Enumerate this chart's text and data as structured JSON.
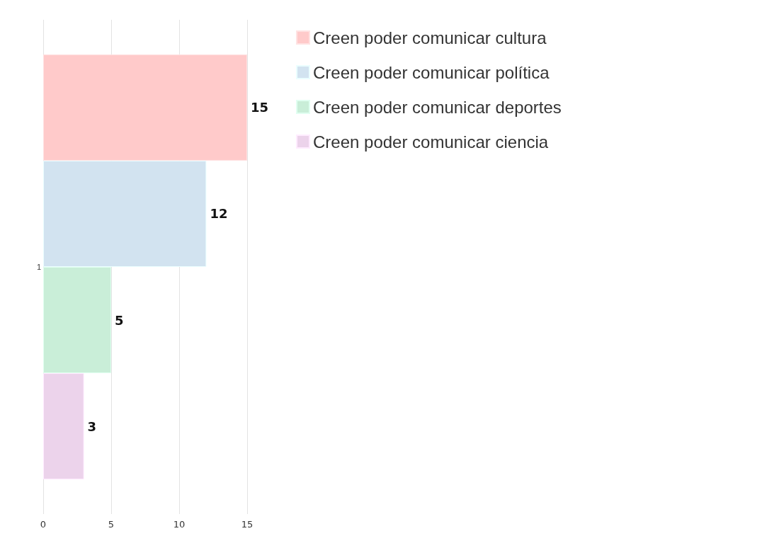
{
  "chart_data": {
    "type": "bar",
    "orientation": "horizontal",
    "categories": [
      "1"
    ],
    "series": [
      {
        "name": "Creen poder comunicar cultura",
        "color": "#ffcaca",
        "values": [
          15
        ]
      },
      {
        "name": "Creen poder comunicar política",
        "color": "#d2e3f0",
        "values": [
          12
        ]
      },
      {
        "name": "Creen poder comunicar deportes",
        "color": "#c9eed8",
        "values": [
          5
        ]
      },
      {
        "name": "Creen poder comunicar ciencia",
        "color": "#ecd3eb",
        "values": [
          3
        ]
      }
    ],
    "xlim": [
      0,
      15
    ],
    "xticks": [
      0,
      5,
      10,
      15
    ],
    "grid": "x",
    "legend": "top right",
    "data_labels": true
  }
}
